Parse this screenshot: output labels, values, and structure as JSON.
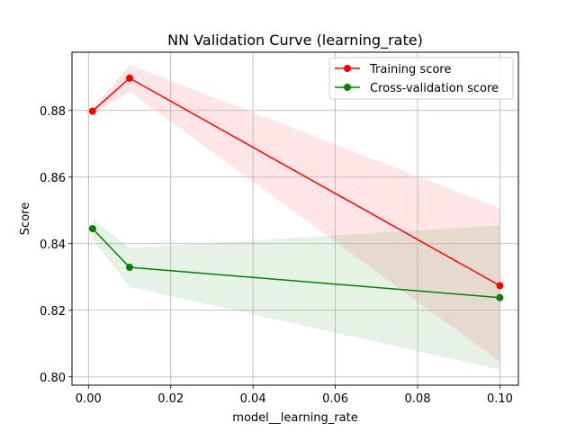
{
  "chart_data": {
    "type": "line",
    "title": "NN Validation Curve (learning_rate)",
    "xlabel": "model__learning_rate",
    "ylabel": "Score",
    "xlim": [
      -0.004,
      0.1045
    ],
    "ylim": [
      0.7975,
      0.8975
    ],
    "xticks": [
      0.0,
      0.02,
      0.04,
      0.06,
      0.08,
      0.1
    ],
    "xtick_labels": [
      "0.00",
      "0.02",
      "0.04",
      "0.06",
      "0.08",
      "0.10"
    ],
    "yticks": [
      0.8,
      0.82,
      0.84,
      0.86,
      0.88
    ],
    "ytick_labels": [
      "0.80",
      "0.82",
      "0.84",
      "0.86",
      "0.88"
    ],
    "grid": true,
    "legend_position": "top-right",
    "x": [
      0.001,
      0.01,
      0.1
    ],
    "series": [
      {
        "name": "Training score",
        "color": "#ff0000",
        "band_color": "#ff0000",
        "values": [
          0.8798,
          0.8897,
          0.8274
        ],
        "band_upper": [
          0.8806,
          0.8937,
          0.8506
        ],
        "band_lower": [
          0.879,
          0.8857,
          0.8045
        ]
      },
      {
        "name": "Cross-validation score",
        "color": "#008000",
        "band_color": "#008000",
        "values": [
          0.8445,
          0.8329,
          0.8238
        ],
        "band_upper": [
          0.8475,
          0.8387,
          0.8455
        ],
        "band_lower": [
          0.8415,
          0.827,
          0.8022
        ]
      }
    ]
  }
}
